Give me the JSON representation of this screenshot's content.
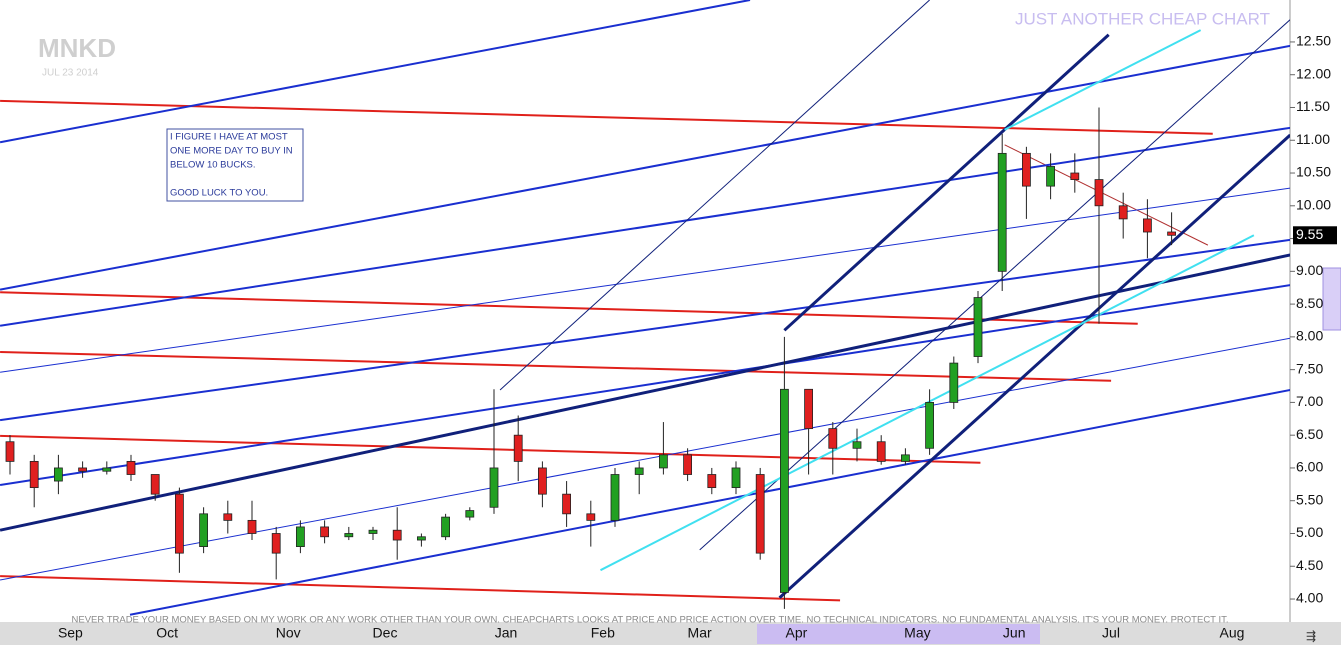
{
  "chart_data": {
    "type": "candlestick",
    "title": "MNKD",
    "subtitle": "JUL 23 2014",
    "brand": "JUST ANOTHER CHEAP CHART",
    "note": [
      "I FIGURE I HAVE AT MOST",
      "ONE MORE DAY TO BUY IN",
      "BELOW 10 BUCKS.",
      "GOOD LUCK TO YOU."
    ],
    "disclaimer": "NEVER TRADE YOUR MONEY BASED ON MY WORK OR ANY WORK OTHER THAN YOUR OWN. CHEAPCHARTS LOOKS AT PRICE AND PRICE ACTION OVER TIME. NO TECHNICAL INDICATORS. NO FUNDAMENTAL ANALYSIS. IT'S YOUR MONEY. PROTECT IT.",
    "last_price": 9.55,
    "last_price_label": "9.55",
    "up_color": "#22a022",
    "down_color": "#e02020",
    "categories": [
      null,
      null,
      "Sep",
      null,
      null,
      null,
      "Oct",
      null,
      null,
      null,
      null,
      "Nov",
      null,
      null,
      null,
      "Dec",
      null,
      null,
      null,
      null,
      "Jan",
      null,
      null,
      null,
      "Feb",
      null,
      null,
      null,
      "Mar",
      null,
      null,
      null,
      "Apr",
      null,
      null,
      null,
      null,
      "May",
      null,
      null,
      null,
      "Jun",
      null,
      null,
      null,
      "Jul",
      null,
      null,
      null,
      null,
      "Aug"
    ],
    "open": [
      6.4,
      6.1,
      5.8,
      6.0,
      5.95,
      6.1,
      5.9,
      5.6,
      4.8,
      5.3,
      5.2,
      5.0,
      4.8,
      5.1,
      4.95,
      5.0,
      5.05,
      4.9,
      4.95,
      5.25,
      5.4,
      6.5,
      6.0,
      5.6,
      5.3,
      5.2,
      5.9,
      6.0,
      6.2,
      5.9,
      5.7,
      5.9,
      4.1,
      7.2,
      6.6,
      6.3,
      6.4,
      6.1,
      6.3,
      7.0,
      7.7,
      9.0,
      10.8,
      10.3,
      10.5,
      10.4,
      10.0,
      9.8,
      9.6,
      null,
      null
    ],
    "high": [
      6.5,
      6.2,
      6.2,
      6.1,
      6.1,
      6.2,
      5.9,
      5.7,
      5.4,
      5.5,
      5.5,
      5.1,
      5.2,
      5.2,
      5.1,
      5.1,
      5.4,
      5.0,
      5.3,
      5.4,
      7.2,
      6.8,
      6.1,
      5.8,
      5.5,
      6.0,
      6.1,
      6.7,
      6.3,
      6.0,
      6.1,
      6.0,
      8.0,
      7.2,
      6.7,
      6.6,
      6.5,
      6.3,
      7.2,
      7.7,
      8.7,
      11.1,
      10.9,
      10.8,
      10.8,
      11.5,
      10.2,
      10.1,
      9.9,
      null,
      null
    ],
    "low": [
      5.9,
      5.4,
      5.6,
      5.85,
      5.9,
      5.8,
      5.5,
      4.4,
      4.7,
      5.0,
      4.9,
      4.3,
      4.7,
      4.85,
      4.9,
      4.9,
      4.6,
      4.8,
      4.9,
      5.2,
      5.3,
      5.8,
      5.4,
      5.1,
      4.8,
      5.1,
      5.6,
      5.9,
      5.8,
      5.6,
      5.6,
      4.6,
      3.85,
      5.9,
      5.9,
      6.1,
      6.05,
      6.05,
      6.2,
      6.9,
      7.6,
      8.7,
      9.8,
      10.1,
      10.2,
      8.2,
      9.5,
      9.2,
      9.4,
      null,
      null
    ],
    "close": [
      6.1,
      5.7,
      6.0,
      5.95,
      6.0,
      5.9,
      5.6,
      4.7,
      5.3,
      5.2,
      5.0,
      4.7,
      5.1,
      4.95,
      5.0,
      5.05,
      4.9,
      4.95,
      5.25,
      5.35,
      6.0,
      6.1,
      5.6,
      5.3,
      5.2,
      5.9,
      6.0,
      6.2,
      5.9,
      5.7,
      6.0,
      4.7,
      7.2,
      6.6,
      6.3,
      6.4,
      6.1,
      6.2,
      7.0,
      7.6,
      8.6,
      10.8,
      10.3,
      10.6,
      10.4,
      10.0,
      9.8,
      9.6,
      9.55,
      null,
      null
    ],
    "ylim": [
      3.68,
      13.14
    ],
    "yticks": [
      {
        "value": 4,
        "label": "4.00"
      },
      {
        "value": 4.5,
        "label": "4.50"
      },
      {
        "value": 5,
        "label": "5.00"
      },
      {
        "value": 5.5,
        "label": "5.50"
      },
      {
        "value": 6,
        "label": "6.00"
      },
      {
        "value": 6.5,
        "label": "6.50"
      },
      {
        "value": 7,
        "label": "7.00"
      },
      {
        "value": 7.5,
        "label": "7.50"
      },
      {
        "value": 8,
        "label": "8.00"
      },
      {
        "value": 8.5,
        "label": "8.50"
      },
      {
        "value": 9,
        "label": "9.00"
      },
      {
        "value": 9.5,
        "label": "9.50"
      },
      {
        "value": 10,
        "label": "10.00"
      },
      {
        "value": 10.5,
        "label": "10.50"
      },
      {
        "value": 11,
        "label": "11.00"
      },
      {
        "value": 11.5,
        "label": "11.50"
      },
      {
        "value": 12,
        "label": "12.00"
      },
      {
        "value": 12.5,
        "label": "12.50"
      }
    ],
    "trendlines": [
      {
        "color": "#e0201a",
        "width": 2,
        "points": [
          [
            -0.41,
            11.6
          ],
          [
            49.7,
            11.1
          ]
        ]
      },
      {
        "color": "#e0201a",
        "width": 2,
        "points": [
          [
            -0.41,
            8.68
          ],
          [
            46.6,
            8.2
          ]
        ]
      },
      {
        "color": "#e0201a",
        "width": 2,
        "points": [
          [
            -0.41,
            7.77
          ],
          [
            45.5,
            7.33
          ]
        ]
      },
      {
        "color": "#e0201a",
        "width": 2,
        "points": [
          [
            -0.41,
            6.49
          ],
          [
            40.1,
            6.08
          ]
        ]
      },
      {
        "color": "#e0201a",
        "width": 2,
        "points": [
          [
            -0.41,
            4.35
          ],
          [
            34.3,
            3.98
          ]
        ]
      },
      {
        "color": "#b03030",
        "width": 1,
        "points": [
          [
            41.1,
            10.93
          ],
          [
            49.5,
            9.4
          ]
        ]
      },
      {
        "color": "#1a2fd0",
        "width": 2,
        "points": [
          [
            -0.41,
            10.97
          ],
          [
            30.58,
            13.14
          ]
        ]
      },
      {
        "color": "#1a2fd0",
        "width": 2,
        "points": [
          [
            -0.41,
            8.72
          ],
          [
            52.9,
            12.44
          ]
        ]
      },
      {
        "color": "#1a2fd0",
        "width": 2,
        "points": [
          [
            -0.41,
            8.17
          ],
          [
            52.9,
            11.19
          ]
        ]
      },
      {
        "color": "#1a2fd0",
        "width": 1,
        "points": [
          [
            -0.41,
            7.46
          ],
          [
            52.9,
            10.27
          ]
        ]
      },
      {
        "color": "#1a2fd0",
        "width": 2,
        "points": [
          [
            -0.41,
            6.73
          ],
          [
            52.9,
            9.48
          ]
        ]
      },
      {
        "color": "#1a2fd0",
        "width": 2,
        "points": [
          [
            -0.41,
            5.74
          ],
          [
            52.9,
            8.79
          ]
        ]
      },
      {
        "color": "#10207a",
        "width": 3,
        "points": [
          [
            -0.41,
            5.05
          ],
          [
            52.9,
            9.25
          ]
        ]
      },
      {
        "color": "#1a2fd0",
        "width": 2,
        "points": [
          [
            4.96,
            3.76
          ],
          [
            52.9,
            7.19
          ]
        ]
      },
      {
        "color": "#1a2fd0",
        "width": 1,
        "points": [
          [
            -0.41,
            4.29
          ],
          [
            52.9,
            7.98
          ]
        ]
      },
      {
        "color": "#10207a",
        "width": 3,
        "points": [
          [
            32.0,
            8.1
          ],
          [
            45.4,
            12.61
          ]
        ]
      },
      {
        "color": "#10207a",
        "width": 3,
        "points": [
          [
            31.8,
            4.02
          ],
          [
            52.9,
            11.08
          ]
        ]
      },
      {
        "color": "#10207a",
        "width": 1,
        "points": [
          [
            20.25,
            7.19
          ],
          [
            38.0,
            13.14
          ]
        ]
      },
      {
        "color": "#10207a",
        "width": 1,
        "points": [
          [
            28.5,
            4.75
          ],
          [
            52.9,
            12.84
          ]
        ]
      },
      {
        "color": "#40e0f0",
        "width": 2,
        "points": [
          [
            24.4,
            4.44
          ],
          [
            51.4,
            9.55
          ]
        ]
      },
      {
        "color": "#40e0f0",
        "width": 2,
        "points": [
          [
            41.1,
            11.16
          ],
          [
            49.2,
            12.68
          ]
        ]
      }
    ]
  }
}
